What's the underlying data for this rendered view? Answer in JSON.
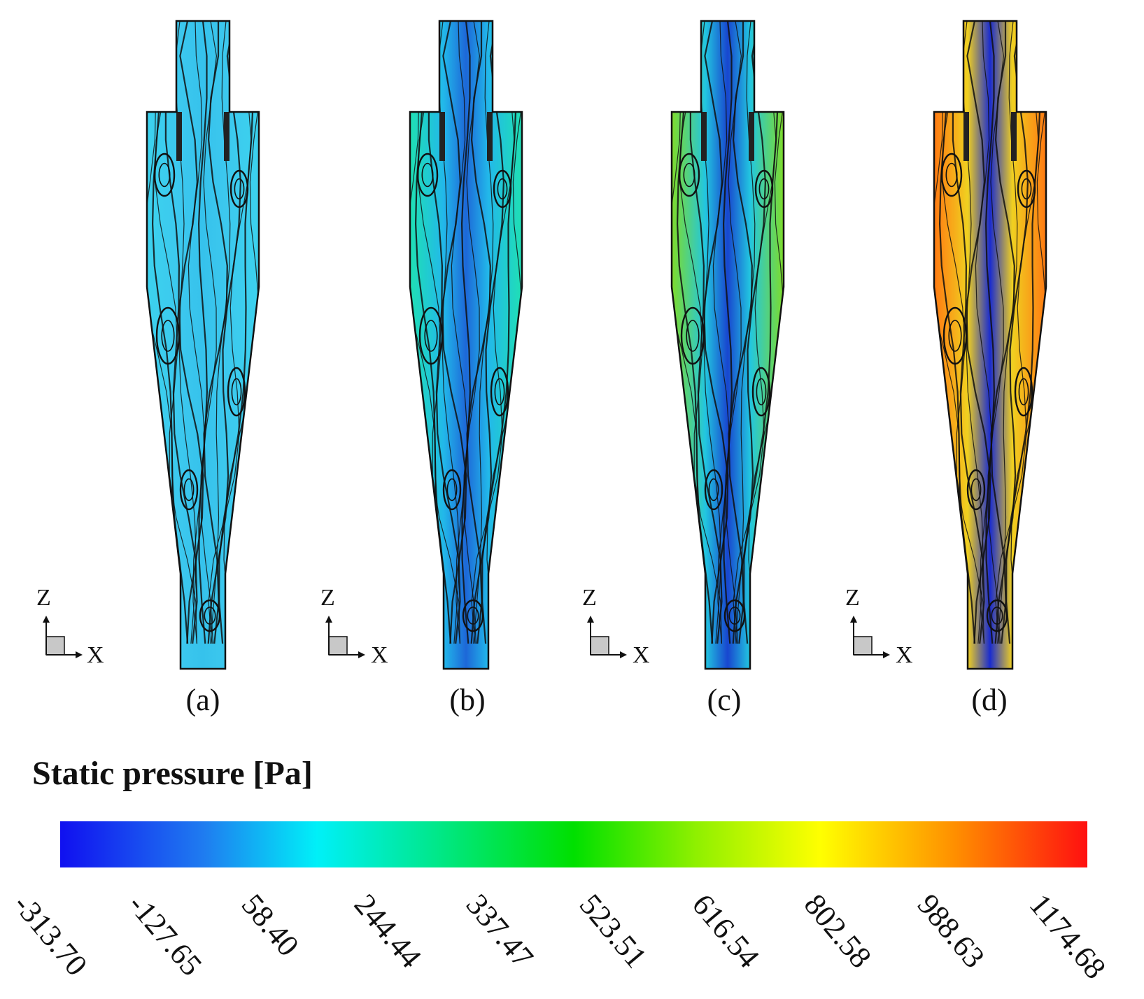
{
  "panels": [
    {
      "label": "(a)",
      "axis_z": "Z",
      "axis_x": "X",
      "colors": {
        "outer": "#3cd2ee",
        "mid": "#3cc8ee",
        "core": "#36c2ec"
      }
    },
    {
      "label": "(b)",
      "axis_z": "Z",
      "axis_x": "X",
      "colors": {
        "outer": "#1fe0b4",
        "mid": "#22b8ea",
        "core": "#1d68d8"
      }
    },
    {
      "label": "(c)",
      "axis_z": "Z",
      "axis_x": "X",
      "colors": {
        "outer": "#7fdc2a",
        "mid": "#22c6e0",
        "core": "#1846cf"
      }
    },
    {
      "label": "(d)",
      "axis_z": "Z",
      "axis_x": "X",
      "colors": {
        "outer": "#ff7a12",
        "mid": "#f0d020",
        "core": "#1a2ccf"
      }
    }
  ],
  "legend": {
    "title": "Static pressure [Pa]",
    "ticks": [
      "-313.70",
      "-127.65",
      "58.40",
      "244.44",
      "337.47",
      "523.51",
      "616.54",
      "802.58",
      "988.63",
      "1174.68"
    ],
    "gradient_colors": [
      "#1010f0",
      "#1f7cf0",
      "#00f0f8",
      "#00e890",
      "#00e000",
      "#90f000",
      "#ffff00",
      "#ff9000",
      "#ff1010"
    ]
  }
}
